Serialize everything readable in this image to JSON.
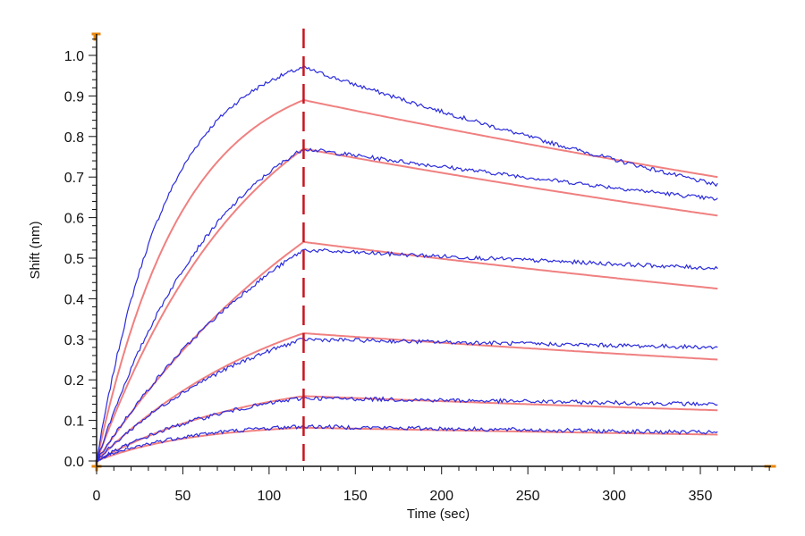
{
  "chart_data": {
    "type": "line",
    "xlabel": "Time (sec)",
    "ylabel": "Shift (nm)",
    "xlim": [
      0,
      395
    ],
    "ylim": [
      -0.015,
      1.06
    ],
    "x_ticks": [
      0,
      50,
      100,
      150,
      200,
      250,
      300,
      350
    ],
    "y_ticks": [
      0.0,
      0.1,
      0.2,
      0.3,
      0.4,
      0.5,
      0.6,
      0.7,
      0.8,
      0.9,
      1.0
    ],
    "y_tick_labels": [
      "0.0",
      "0.1",
      "0.2",
      "0.3",
      "0.4",
      "0.5",
      "0.6",
      "0.7",
      "0.8",
      "0.9",
      "1.0"
    ],
    "x_tick_labels": [
      "0",
      "50",
      "100",
      "150",
      "200",
      "250",
      "300",
      "350"
    ],
    "dissociation_start_x": 120,
    "colors": {
      "measured": "#2b2bdc",
      "fit": "#f08080",
      "marker": "#c8141e",
      "axis": "#111111",
      "corner": "#e8870f"
    },
    "measured_series": [
      {
        "peak": 0.97,
        "rate": 0.0245,
        "end": 0.68
      },
      {
        "peak": 0.77,
        "rate": 0.0135,
        "end": 0.645
      },
      {
        "peak": 0.52,
        "rate": 0.0075,
        "end": 0.475
      },
      {
        "peak": 0.3,
        "rate": 0.01,
        "end": 0.28
      },
      {
        "peak": 0.155,
        "rate": 0.012,
        "end": 0.14
      },
      {
        "peak": 0.085,
        "rate": 0.02,
        "end": 0.07
      }
    ],
    "fit_series": [
      {
        "peak": 0.89,
        "rate": 0.02,
        "end": 0.7
      },
      {
        "peak": 0.77,
        "rate": 0.011,
        "end": 0.605
      },
      {
        "peak": 0.54,
        "rate": 0.006,
        "end": 0.425
      },
      {
        "peak": 0.315,
        "rate": 0.009,
        "end": 0.25
      },
      {
        "peak": 0.16,
        "rate": 0.011,
        "end": 0.125
      },
      {
        "peak": 0.082,
        "rate": 0.018,
        "end": 0.065
      }
    ]
  }
}
